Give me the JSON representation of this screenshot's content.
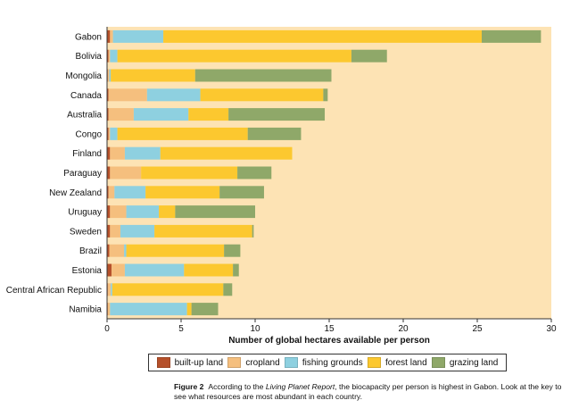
{
  "chart_data": {
    "type": "bar",
    "orientation": "horizontal",
    "stacked": true,
    "categories": [
      "Gabon",
      "Bolivia",
      "Mongolia",
      "Canada",
      "Australia",
      "Congo",
      "Finland",
      "Paraguay",
      "New Zealand",
      "Uruguay",
      "Sweden",
      "Brazil",
      "Estonia",
      "Central African Republic",
      "Namibia"
    ],
    "series": [
      {
        "name": "built-up land",
        "color": "#b5502a",
        "values": [
          0.2,
          0.1,
          0.05,
          0.1,
          0.1,
          0.1,
          0.2,
          0.2,
          0.1,
          0.2,
          0.2,
          0.15,
          0.3,
          0.05,
          0.05
        ]
      },
      {
        "name": "cropland",
        "color": "#f5bf7e",
        "values": [
          0.2,
          0.1,
          0.1,
          2.6,
          1.7,
          0.1,
          1.0,
          2.1,
          0.4,
          1.1,
          0.7,
          1.0,
          0.9,
          0.2,
          0.15
        ]
      },
      {
        "name": "fishing grounds",
        "color": "#8ed0e0",
        "values": [
          3.4,
          0.5,
          0.1,
          3.6,
          3.7,
          0.5,
          2.4,
          0.0,
          2.1,
          2.2,
          2.3,
          0.15,
          4.0,
          0.1,
          5.2
        ]
      },
      {
        "name": "forest land",
        "color": "#fcc82f",
        "values": [
          21.5,
          15.8,
          5.7,
          8.3,
          2.7,
          8.8,
          8.9,
          6.5,
          5.0,
          1.1,
          6.6,
          6.6,
          3.3,
          7.5,
          0.3
        ]
      },
      {
        "name": "grazing land",
        "color": "#8fa869",
        "values": [
          4.0,
          2.4,
          9.2,
          0.3,
          6.5,
          3.6,
          0.0,
          2.3,
          3.0,
          5.4,
          0.1,
          1.1,
          0.4,
          0.6,
          1.8
        ]
      }
    ],
    "xlabel": "Number of global hectares available per person",
    "ylabel": "",
    "xlim": [
      0,
      30
    ],
    "xticks": [
      0,
      5,
      10,
      15,
      20,
      25,
      30
    ],
    "background_color": "#fde3b4",
    "grid": false,
    "legend_position": "bottom"
  },
  "caption": {
    "figure_label": "Figure 2",
    "text_before": "According to the ",
    "italic": "Living Planet Report",
    "text_after": ", the biocapacity per person is highest in Gabon. Look at the key to see what resources are most abundant in each country."
  }
}
